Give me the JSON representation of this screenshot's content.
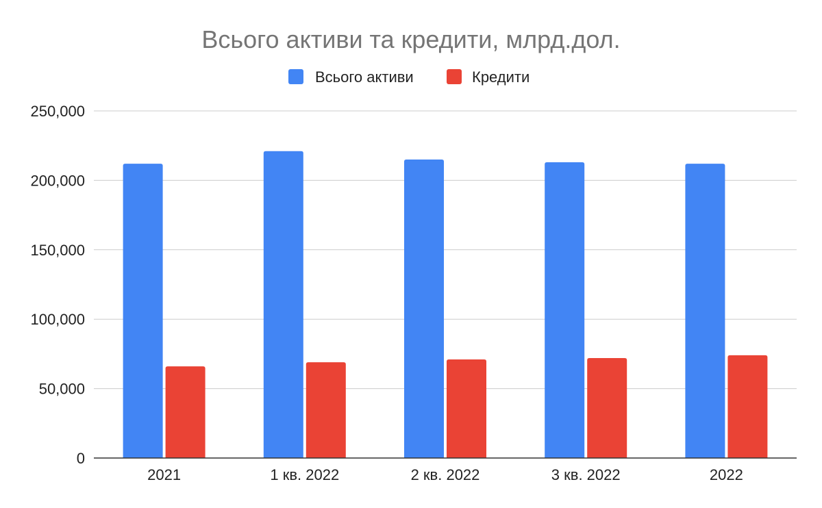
{
  "chart_data": {
    "type": "bar",
    "title": "Всього активи та кредити, млрд.дол.",
    "categories": [
      "2021",
      "1 кв. 2022",
      "2 кв. 2022",
      "3 кв. 2022",
      "2022"
    ],
    "series": [
      {
        "name": "Всього активи",
        "color": "#4285f4",
        "values": [
          212000,
          221000,
          215000,
          213000,
          212000
        ]
      },
      {
        "name": "Кредити",
        "color": "#ea4335",
        "values": [
          66000,
          69000,
          71000,
          72000,
          74000
        ]
      }
    ],
    "y_ticks": [
      "0",
      "50,000",
      "100,000",
      "150,000",
      "200,000",
      "250,000"
    ],
    "ylim": [
      0,
      250000
    ],
    "grid": true,
    "legend_position": "top-center"
  }
}
